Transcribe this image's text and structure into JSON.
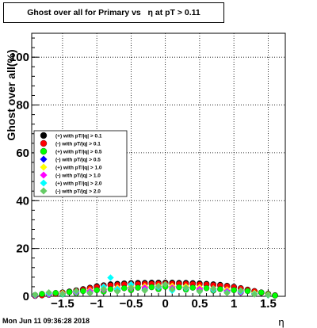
{
  "chart_data": {
    "type": "scatter",
    "title": "Ghost over all for Primary vs   η at pT > 0.11",
    "xlabel": "η",
    "ylabel": "Ghost over all(%)",
    "xlim": [
      -1.95,
      1.75
    ],
    "ylim": [
      0,
      110
    ],
    "x_ticks": [
      -1.5,
      -1,
      -0.5,
      0,
      0.5,
      1,
      1.5
    ],
    "x_tick_labels": [
      "−1.5",
      "−1",
      "−0.5",
      "0",
      "0.5",
      "1",
      "1.5"
    ],
    "y_ticks": [
      0,
      20,
      40,
      60,
      80,
      100
    ],
    "y_tick_labels": [
      "0",
      "20",
      "40",
      "60",
      "80",
      "100"
    ],
    "grid": true,
    "legend_position": "left-middle",
    "series": [
      {
        "name": "(+) with pT/|q| > 0.1",
        "color": "#000000",
        "marker": "circle",
        "x": [
          -1.9,
          -1.8,
          -1.7,
          -1.6,
          -1.5,
          -1.4,
          -1.3,
          -1.2,
          -1.1,
          -1.0,
          -0.9,
          -0.8,
          -0.7,
          -0.6,
          -0.5,
          -0.4,
          -0.3,
          -0.2,
          -0.1,
          0.0,
          0.1,
          0.2,
          0.3,
          0.4,
          0.5,
          0.6,
          0.7,
          0.8,
          0.9,
          1.0,
          1.1,
          1.2,
          1.3,
          1.4,
          1.5,
          1.6
        ],
        "y": [
          0.2,
          0.5,
          0.8,
          1.2,
          1.6,
          2.0,
          2.5,
          3.0,
          3.6,
          4.2,
          4.6,
          5.0,
          5.2,
          5.4,
          5.5,
          5.6,
          5.6,
          5.7,
          5.7,
          5.7,
          5.7,
          5.6,
          5.6,
          5.5,
          5.4,
          5.2,
          5.0,
          4.8,
          4.4,
          4.0,
          3.4,
          2.8,
          2.2,
          1.6,
          1.0,
          0.4
        ]
      },
      {
        "name": "(-) with pT/|q| > 0.1",
        "color": "#ff0000",
        "marker": "circle",
        "x": [
          -1.9,
          -1.8,
          -1.7,
          -1.6,
          -1.5,
          -1.4,
          -1.3,
          -1.2,
          -1.1,
          -1.0,
          -0.9,
          -0.8,
          -0.7,
          -0.6,
          -0.5,
          -0.4,
          -0.3,
          -0.2,
          -0.1,
          0.0,
          0.1,
          0.2,
          0.3,
          0.4,
          0.5,
          0.6,
          0.7,
          0.8,
          0.9,
          1.0,
          1.1,
          1.2,
          1.3,
          1.4,
          1.5,
          1.6
        ],
        "y": [
          0.2,
          0.4,
          0.7,
          1.0,
          1.4,
          1.8,
          2.3,
          2.8,
          3.4,
          3.9,
          4.3,
          4.6,
          4.8,
          5.0,
          5.1,
          5.1,
          5.2,
          5.2,
          5.3,
          5.3,
          5.3,
          5.2,
          5.2,
          5.1,
          5.0,
          4.9,
          4.7,
          4.5,
          4.2,
          3.8,
          3.3,
          2.7,
          2.1,
          1.5,
          0.9,
          0.4
        ]
      },
      {
        "name": "(+) with pT/|q| > 0.5",
        "color": "#00ff00",
        "marker": "circle",
        "x": [
          -1.9,
          -1.8,
          -1.7,
          -1.6,
          -1.5,
          -1.4,
          -1.3,
          -1.2,
          -1.1,
          -1.0,
          -0.9,
          -0.8,
          -0.7,
          -0.6,
          -0.5,
          -0.4,
          -0.3,
          -0.2,
          -0.1,
          0.0,
          0.1,
          0.2,
          0.3,
          0.4,
          0.5,
          0.6,
          0.7,
          0.8,
          0.9,
          1.0,
          1.1,
          1.2,
          1.3,
          1.4,
          1.5,
          1.6
        ],
        "y": [
          0.5,
          1.0,
          0.6,
          1.4,
          0.8,
          1.8,
          1.2,
          2.2,
          1.6,
          2.6,
          2.0,
          3.0,
          2.4,
          3.4,
          2.6,
          3.6,
          2.8,
          3.8,
          3.0,
          4.0,
          3.0,
          3.8,
          2.8,
          3.6,
          2.6,
          3.4,
          2.4,
          3.0,
          2.0,
          2.6,
          1.6,
          2.2,
          1.2,
          1.6,
          0.8,
          0.3
        ]
      },
      {
        "name": "(-) with pT/|q| > 0.5",
        "color": "#0000ff",
        "marker": "diamond",
        "x": [
          -1.9,
          -1.7,
          -1.5,
          -1.3,
          -1.1,
          -0.9,
          -0.7,
          -0.5,
          -0.3,
          -0.1,
          0.1,
          0.3,
          0.5,
          0.7,
          0.9,
          1.1,
          1.3,
          1.5
        ],
        "y": [
          0.3,
          0.8,
          1.2,
          1.8,
          2.4,
          3.0,
          3.5,
          3.8,
          4.0,
          4.2,
          4.1,
          3.9,
          3.6,
          3.2,
          2.6,
          2.0,
          1.3,
          0.6
        ]
      },
      {
        "name": "(+) with pT/|q| > 1.0",
        "color": "#ffff00",
        "marker": "diamond",
        "x": [
          -1.9,
          -1.7,
          -1.5,
          -1.3,
          -1.1,
          -0.9,
          -0.7,
          -0.5,
          -0.3,
          -0.1,
          0.1,
          0.3,
          0.5,
          0.7,
          0.9,
          1.1,
          1.3,
          1.5
        ],
        "y": [
          0.4,
          0.9,
          1.4,
          2.0,
          2.6,
          3.2,
          3.6,
          4.0,
          4.2,
          4.4,
          4.3,
          4.1,
          3.8,
          3.3,
          2.8,
          2.1,
          1.4,
          0.7
        ]
      },
      {
        "name": "(-) with pT/|q| > 1.0",
        "color": "#ff00ff",
        "marker": "diamond",
        "x": [
          -1.9,
          -1.7,
          -1.5,
          -1.3,
          -1.1,
          -0.9,
          -0.7,
          -0.5,
          -0.3,
          -0.1,
          0.1,
          0.3,
          0.5,
          0.7,
          0.9,
          1.1,
          1.3,
          1.5
        ],
        "y": [
          0.3,
          0.7,
          1.1,
          1.6,
          2.2,
          2.7,
          3.1,
          3.4,
          3.6,
          3.7,
          3.6,
          3.4,
          3.1,
          2.7,
          2.2,
          1.6,
          1.0,
          0.5
        ]
      },
      {
        "name": "(+) with pT/|q| > 2.0",
        "color": "#00ffff",
        "marker": "diamond",
        "x": [
          -1.9,
          -1.7,
          -1.5,
          -1.3,
          -1.1,
          -0.9,
          -0.8,
          -0.7,
          -0.5,
          -0.3,
          -0.1,
          0.1,
          0.3,
          0.5,
          0.7,
          0.9,
          1.1,
          1.3,
          1.5
        ],
        "y": [
          0.5,
          1.2,
          0.8,
          2.0,
          1.5,
          4.0,
          7.8,
          3.0,
          5.0,
          2.6,
          3.8,
          2.4,
          3.4,
          2.0,
          2.8,
          1.6,
          2.0,
          1.0,
          0.4
        ]
      },
      {
        "name": "(-) with pT/|q| > 2.0",
        "color": "#66cc66",
        "marker": "diamond",
        "x": [
          -1.9,
          -1.7,
          -1.5,
          -1.3,
          -1.1,
          -0.9,
          -0.7,
          -0.5,
          -0.3,
          -0.1,
          0.0,
          0.1,
          0.3,
          0.5,
          0.7,
          0.9,
          1.1,
          1.3,
          1.5
        ],
        "y": [
          0.6,
          1.6,
          1.0,
          2.2,
          1.4,
          3.0,
          2.0,
          3.6,
          2.4,
          4.2,
          5.0,
          3.0,
          3.6,
          2.0,
          3.2,
          1.4,
          2.4,
          0.8,
          0.5
        ]
      }
    ]
  },
  "footer": {
    "timestamp": "Mon Jun 11 09:36:28 2018"
  }
}
